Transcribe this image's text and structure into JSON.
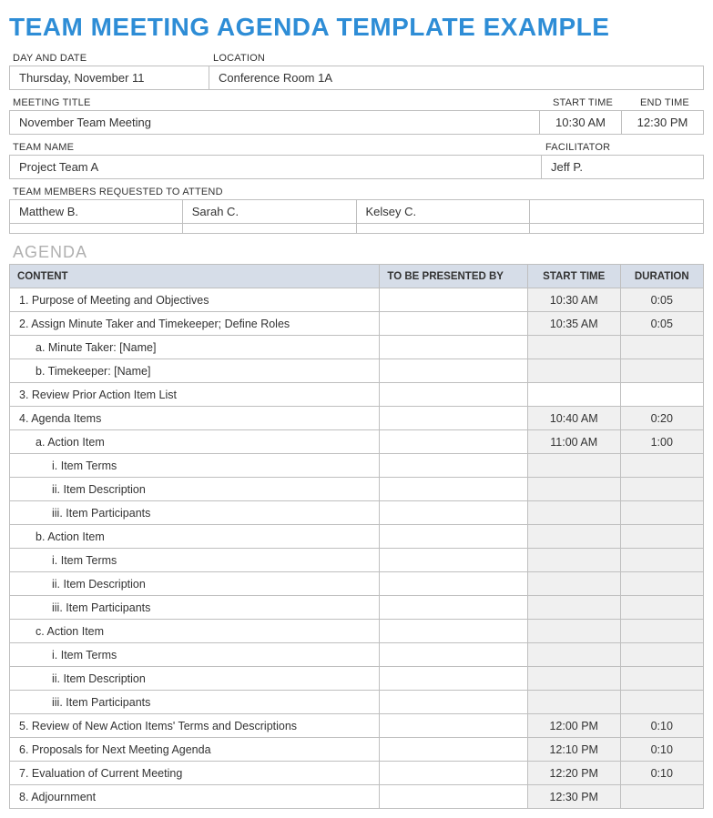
{
  "colors": {
    "title": "#2e8dd6",
    "section": "#b0b0b0",
    "border": "#bfbfbf",
    "header_bg": "#d6dde8",
    "shade_bg": "#f0f0f0"
  },
  "title": "TEAM MEETING AGENDA TEMPLATE EXAMPLE",
  "labels": {
    "day_and_date": "DAY AND DATE",
    "location": "LOCATION",
    "meeting_title": "MEETING TITLE",
    "start_time": "START TIME",
    "end_time": "END TIME",
    "team_name": "TEAM NAME",
    "facilitator": "FACILITATOR",
    "members": "TEAM MEMBERS REQUESTED TO ATTEND"
  },
  "fields": {
    "day_and_date": "Thursday, November 11",
    "location": "Conference Room 1A",
    "meeting_title": "November Team Meeting",
    "start_time": "10:30 AM",
    "end_time": "12:30 PM",
    "team_name": "Project Team A",
    "facilitator": "Jeff P."
  },
  "members": [
    "Matthew B.",
    "Sarah C.",
    "Kelsey C.",
    "",
    "",
    "",
    "",
    ""
  ],
  "agenda_section_title": "AGENDA",
  "agenda_headers": {
    "content": "CONTENT",
    "presenter": "TO BE PRESENTED BY",
    "start": "START TIME",
    "duration": "DURATION"
  },
  "agenda_rows": [
    {
      "indent": 0,
      "content": "1. Purpose of Meeting and Objectives",
      "presenter": "",
      "start": "10:30 AM",
      "duration": "0:05",
      "shade": true
    },
    {
      "indent": 0,
      "content": "2. Assign Minute Taker and Timekeeper; Define Roles",
      "presenter": "",
      "start": "10:35 AM",
      "duration": "0:05",
      "shade": true
    },
    {
      "indent": 1,
      "content": "a. Minute Taker: [Name]",
      "presenter": "",
      "start": "",
      "duration": "",
      "shade": true
    },
    {
      "indent": 1,
      "content": "b. Timekeeper: [Name]",
      "presenter": "",
      "start": "",
      "duration": "",
      "shade": true
    },
    {
      "indent": 0,
      "content": "3. Review Prior Action Item List",
      "presenter": "",
      "start": "",
      "duration": "",
      "shade": false
    },
    {
      "indent": 0,
      "content": "4. Agenda Items",
      "presenter": "",
      "start": "10:40 AM",
      "duration": "0:20",
      "shade": true
    },
    {
      "indent": 1,
      "content": "a. Action Item",
      "presenter": "",
      "start": "11:00 AM",
      "duration": "1:00",
      "shade": true
    },
    {
      "indent": 2,
      "content": "i. Item Terms",
      "presenter": "",
      "start": "",
      "duration": "",
      "shade": true
    },
    {
      "indent": 2,
      "content": "ii. Item Description",
      "presenter": "",
      "start": "",
      "duration": "",
      "shade": true
    },
    {
      "indent": 2,
      "content": "iii. Item Participants",
      "presenter": "",
      "start": "",
      "duration": "",
      "shade": true
    },
    {
      "indent": 1,
      "content": "b. Action Item",
      "presenter": "",
      "start": "",
      "duration": "",
      "shade": true
    },
    {
      "indent": 2,
      "content": "i. Item Terms",
      "presenter": "",
      "start": "",
      "duration": "",
      "shade": true
    },
    {
      "indent": 2,
      "content": "ii. Item Description",
      "presenter": "",
      "start": "",
      "duration": "",
      "shade": true
    },
    {
      "indent": 2,
      "content": "iii. Item Participants",
      "presenter": "",
      "start": "",
      "duration": "",
      "shade": true
    },
    {
      "indent": 1,
      "content": "c. Action Item",
      "presenter": "",
      "start": "",
      "duration": "",
      "shade": true
    },
    {
      "indent": 2,
      "content": "i. Item Terms",
      "presenter": "",
      "start": "",
      "duration": "",
      "shade": true
    },
    {
      "indent": 2,
      "content": "ii. Item Description",
      "presenter": "",
      "start": "",
      "duration": "",
      "shade": true
    },
    {
      "indent": 2,
      "content": "iii. Item Participants",
      "presenter": "",
      "start": "",
      "duration": "",
      "shade": true
    },
    {
      "indent": 0,
      "content": "5. Review of New Action Items' Terms and Descriptions",
      "presenter": "",
      "start": "12:00 PM",
      "duration": "0:10",
      "shade": true
    },
    {
      "indent": 0,
      "content": "6. Proposals for Next Meeting Agenda",
      "presenter": "",
      "start": "12:10 PM",
      "duration": "0:10",
      "shade": true
    },
    {
      "indent": 0,
      "content": "7. Evaluation of Current Meeting",
      "presenter": "",
      "start": "12:20 PM",
      "duration": "0:10",
      "shade": true
    },
    {
      "indent": 0,
      "content": "8. Adjournment",
      "presenter": "",
      "start": "12:30 PM",
      "duration": "",
      "shade": true
    }
  ]
}
